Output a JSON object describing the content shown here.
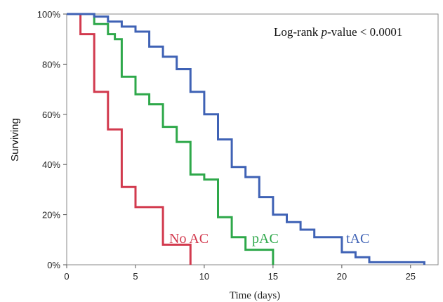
{
  "chart_data": {
    "type": "line",
    "step": true,
    "xlabel": "Time (days)",
    "ylabel": "Surviving",
    "xlim": [
      0,
      27
    ],
    "ylim": [
      0,
      100
    ],
    "x_ticks": [
      0,
      5,
      10,
      15,
      20,
      25
    ],
    "y_ticks": [
      0,
      20,
      40,
      60,
      80,
      100
    ],
    "y_tick_suffix": "%",
    "grid": false,
    "annotation": {
      "prefix": "Log-rank ",
      "italic": "p",
      "suffix": "-value < 0.0001"
    },
    "series": [
      {
        "name": "No AC",
        "color": "#d23a4e",
        "points": [
          [
            0,
            100
          ],
          [
            1,
            100
          ],
          [
            1,
            92
          ],
          [
            2,
            92
          ],
          [
            2,
            69
          ],
          [
            3,
            69
          ],
          [
            3,
            54
          ],
          [
            4,
            54
          ],
          [
            4,
            31
          ],
          [
            5,
            31
          ],
          [
            5,
            23
          ],
          [
            7,
            23
          ],
          [
            7,
            8
          ],
          [
            9,
            8
          ],
          [
            9,
            0
          ]
        ]
      },
      {
        "name": "pAC",
        "color": "#2ea84a",
        "points": [
          [
            0,
            100
          ],
          [
            2,
            100
          ],
          [
            2,
            96
          ],
          [
            3,
            96
          ],
          [
            3,
            92
          ],
          [
            3.5,
            92
          ],
          [
            3.5,
            90
          ],
          [
            4,
            90
          ],
          [
            4,
            75
          ],
          [
            5,
            75
          ],
          [
            5,
            68
          ],
          [
            6,
            68
          ],
          [
            6,
            64
          ],
          [
            7,
            64
          ],
          [
            7,
            55
          ],
          [
            8,
            55
          ],
          [
            8,
            49
          ],
          [
            9,
            49
          ],
          [
            9,
            36
          ],
          [
            10,
            36
          ],
          [
            10,
            34
          ],
          [
            11,
            34
          ],
          [
            11,
            19
          ],
          [
            12,
            19
          ],
          [
            12,
            11
          ],
          [
            13,
            11
          ],
          [
            13,
            6
          ],
          [
            15,
            6
          ],
          [
            15,
            0
          ]
        ]
      },
      {
        "name": "tAC",
        "color": "#3f62b5",
        "points": [
          [
            0,
            100
          ],
          [
            2,
            100
          ],
          [
            2,
            99
          ],
          [
            3,
            99
          ],
          [
            3,
            97
          ],
          [
            4,
            97
          ],
          [
            4,
            95
          ],
          [
            5,
            95
          ],
          [
            5,
            93
          ],
          [
            6,
            93
          ],
          [
            6,
            87
          ],
          [
            7,
            87
          ],
          [
            7,
            83
          ],
          [
            8,
            83
          ],
          [
            8,
            78
          ],
          [
            9,
            78
          ],
          [
            9,
            69
          ],
          [
            10,
            69
          ],
          [
            10,
            60
          ],
          [
            11,
            60
          ],
          [
            11,
            50
          ],
          [
            12,
            50
          ],
          [
            12,
            39
          ],
          [
            13,
            39
          ],
          [
            13,
            35
          ],
          [
            14,
            35
          ],
          [
            14,
            27
          ],
          [
            15,
            27
          ],
          [
            15,
            20
          ],
          [
            16,
            20
          ],
          [
            16,
            17
          ],
          [
            17,
            17
          ],
          [
            17,
            14
          ],
          [
            18,
            14
          ],
          [
            18,
            11
          ],
          [
            20,
            11
          ],
          [
            20,
            5
          ],
          [
            21,
            5
          ],
          [
            21,
            3
          ],
          [
            22,
            3
          ],
          [
            22,
            1
          ],
          [
            26,
            1
          ],
          [
            26,
            0
          ]
        ]
      }
    ]
  }
}
